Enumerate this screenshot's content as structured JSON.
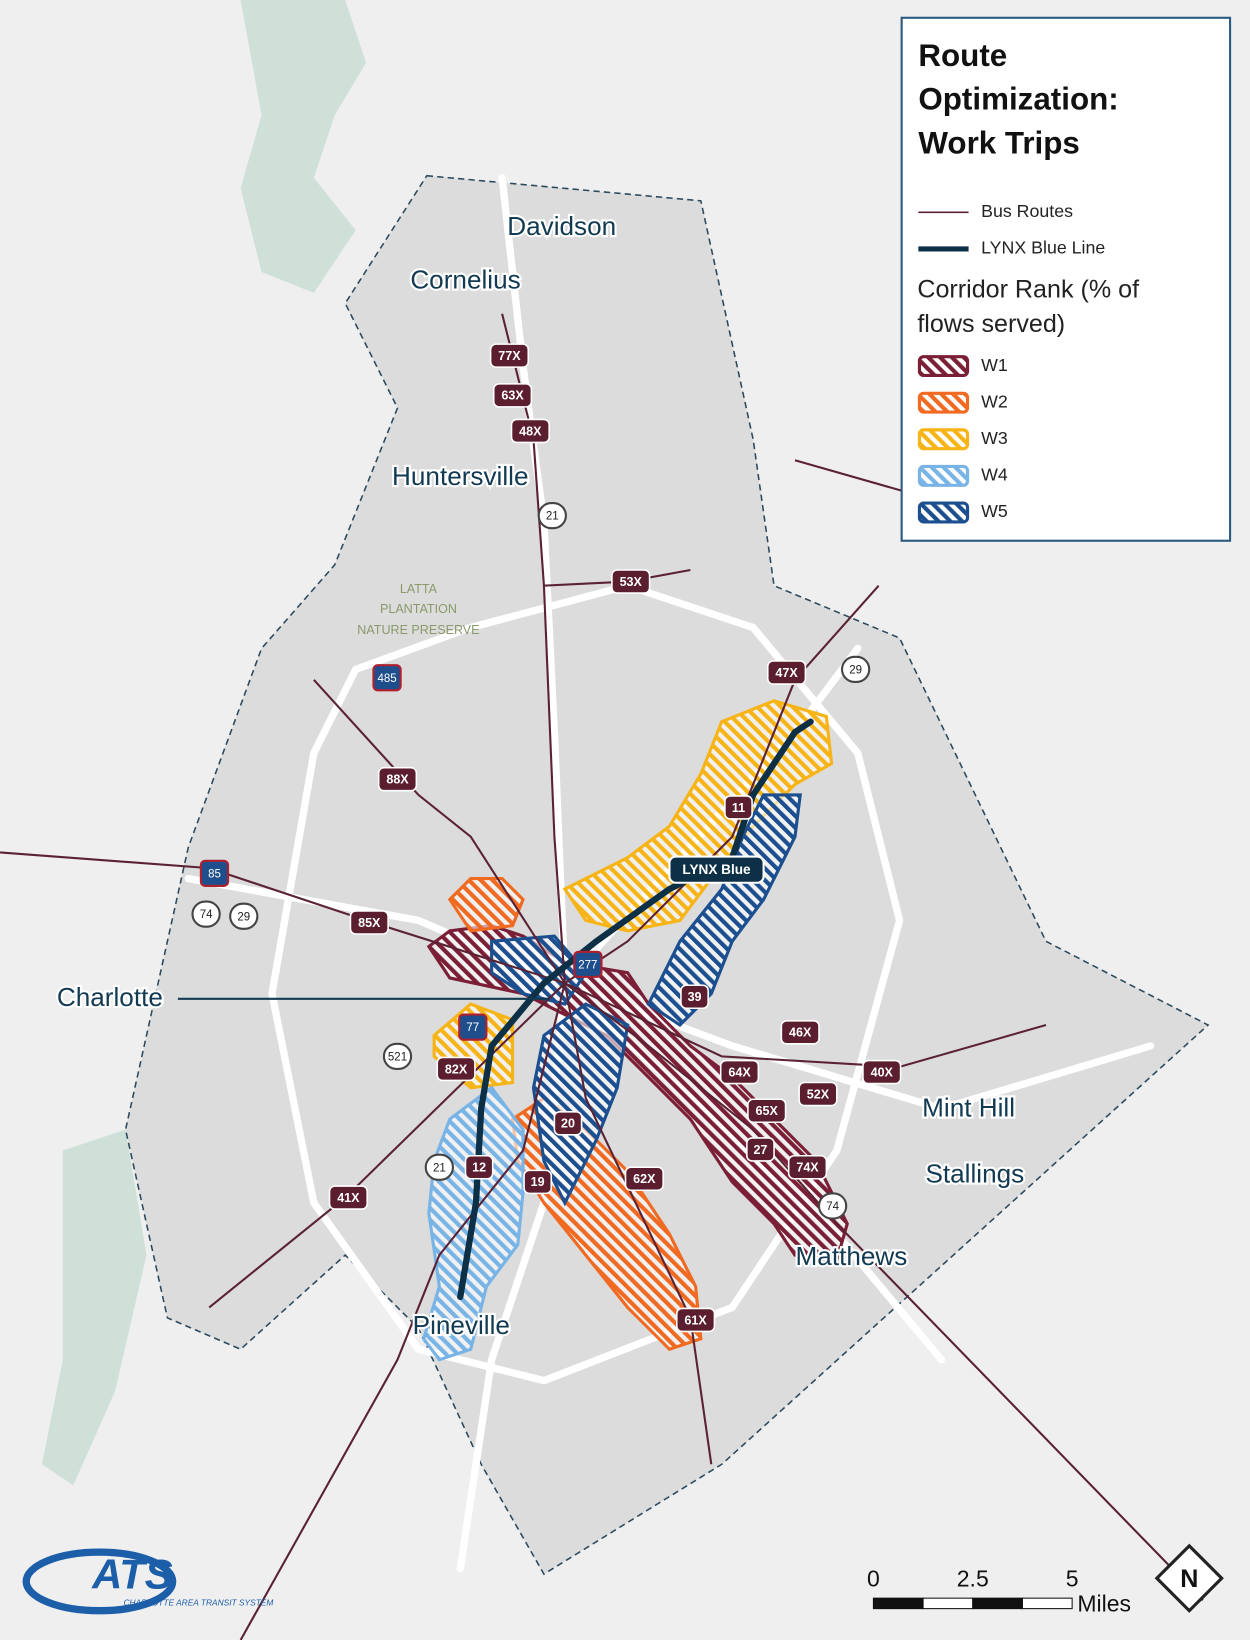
{
  "title_lines": [
    "Route",
    "Optimization:",
    "Work Trips"
  ],
  "legend": {
    "lines": [
      {
        "label": "Bus Routes",
        "color": "#5a2233"
      },
      {
        "label": "LYNX Blue Line",
        "color": "#0d3047"
      }
    ],
    "heading_lines": [
      "Corridor Rank (% of",
      "flows served)"
    ],
    "ranks": [
      {
        "label": "W1",
        "color": "#7a1f36"
      },
      {
        "label": "W2",
        "color": "#f06a22"
      },
      {
        "label": "W3",
        "color": "#f7b417"
      },
      {
        "label": "W4",
        "color": "#79b4e6"
      },
      {
        "label": "W5",
        "color": "#1c4f8f"
      }
    ]
  },
  "places": [
    "Davidson",
    "Cornelius",
    "Huntersville",
    "Charlotte",
    "Mint Hill",
    "Stallings",
    "Matthews",
    "Pineville"
  ],
  "park_lines": [
    "LATTA",
    "PLANTATION",
    "NATURE PRESERVE"
  ],
  "routes": [
    "77X",
    "63X",
    "48X",
    "53X",
    "47X",
    "88X",
    "85X",
    "11",
    "39",
    "46X",
    "40X",
    "64X",
    "52X",
    "65X",
    "27",
    "74X",
    "82X",
    "20",
    "12",
    "19",
    "62X",
    "41X",
    "61X"
  ],
  "highways": [
    "21",
    "485",
    "85",
    "74",
    "29",
    "77",
    "277",
    "521",
    "21",
    "74",
    "29"
  ],
  "line_label": "LYNX Blue",
  "scale": {
    "ticks": [
      "0",
      "2.5",
      "5"
    ],
    "unit": "Miles"
  },
  "north": "N",
  "logo": {
    "name": "ATS",
    "subtitle": "CHARLOTTE AREA TRANSIT SYSTEM"
  }
}
